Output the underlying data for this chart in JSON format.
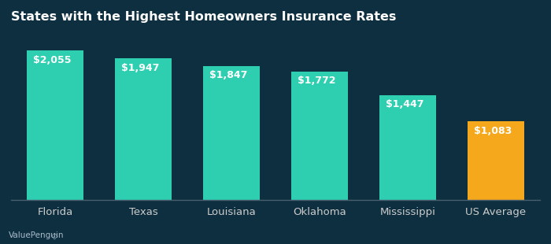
{
  "title": "States with the Highest Homeowners Insurance Rates",
  "categories": [
    "Florida",
    "Texas",
    "Louisiana",
    "Oklahoma",
    "Mississippi",
    "US Average"
  ],
  "values": [
    2055,
    1947,
    1847,
    1772,
    1447,
    1083
  ],
  "labels": [
    "$2,055",
    "$1,947",
    "$1,847",
    "$1,772",
    "$1,447",
    "$1,083"
  ],
  "bar_colors": [
    "#2ecfb0",
    "#2ecfb0",
    "#2ecfb0",
    "#2ecfb0",
    "#2ecfb0",
    "#f5a81c"
  ],
  "background_color": "#0d2f3f",
  "title_color": "#ffffff",
  "label_color": "#ffffff",
  "xtick_color": "#cccccc",
  "watermark": "ValuePenguin",
  "ylim": [
    0,
    2350
  ],
  "bar_width": 0.65,
  "title_fontsize": 11.5,
  "label_fontsize": 9,
  "xtick_fontsize": 9.5,
  "bottom_spine_color": "#4a6070"
}
